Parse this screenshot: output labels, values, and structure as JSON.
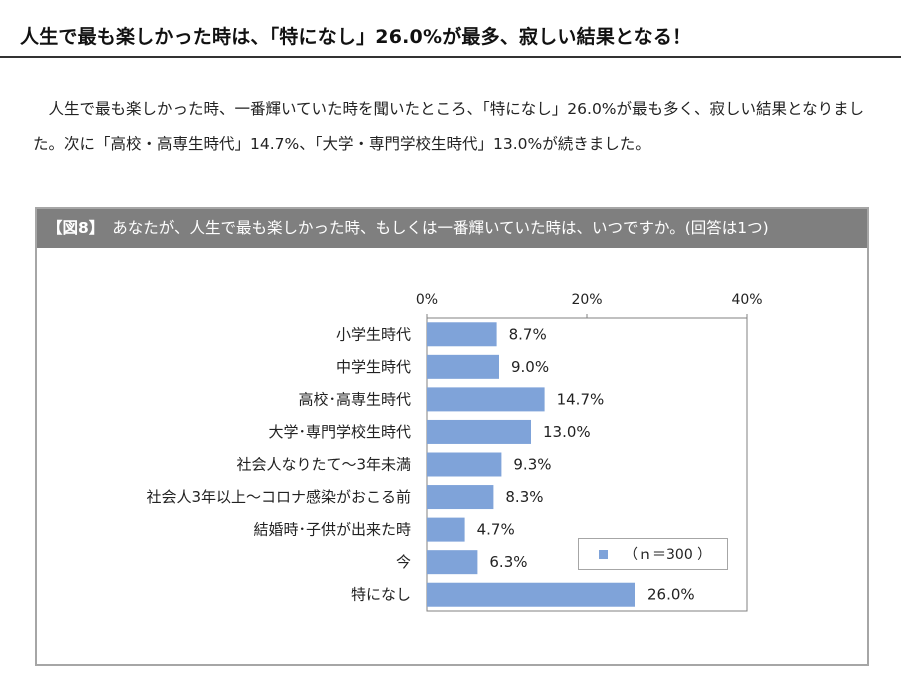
{
  "headline": "人生で最も楽しかった時は、「特になし」26.0%が最多、寂しい結果となる！",
  "intro": "　人生で最も楽しかった時、一番輝いていた時を聞いたところ、「特になし」26.0%が最も多く、寂しい結果となりました。次に「高校・高専生時代」14.7%、「大学・専門学校生時代」13.0%が続きました。",
  "figure": {
    "label": "【図8】",
    "question": "あなたが、人生で最も楽しかった時、もしくは一番輝いていた時は、いつですか。(回答は1つ)"
  },
  "legend": {
    "text": "（ｎ＝300 ）"
  },
  "colors": {
    "bar": "#7fa3d9",
    "panel_header": "#7f7f7f",
    "gridline": "#808080"
  },
  "chart_data": {
    "type": "bar",
    "orientation": "horizontal",
    "categories": [
      "小学生時代",
      "中学生時代",
      "高校･高専生時代",
      "大学･専門学校生時代",
      "社会人なりたて～3年未満",
      "社会人3年以上～コロナ感染がおこる前",
      "結婚時･子供が出来た時",
      "今",
      "特になし"
    ],
    "values": [
      8.7,
      9.0,
      14.7,
      13.0,
      9.3,
      8.3,
      4.7,
      6.3,
      26.0
    ],
    "value_labels": [
      "8.7%",
      "9.0%",
      "14.7%",
      "13.0%",
      "9.3%",
      "8.3%",
      "4.7%",
      "6.3%",
      "26.0%"
    ],
    "x_ticks": [
      0,
      20,
      40
    ],
    "x_tick_labels": [
      "0%",
      "20%",
      "40%"
    ],
    "xlim": [
      0,
      40
    ],
    "grid": false,
    "legend_position": "bottom-right"
  }
}
